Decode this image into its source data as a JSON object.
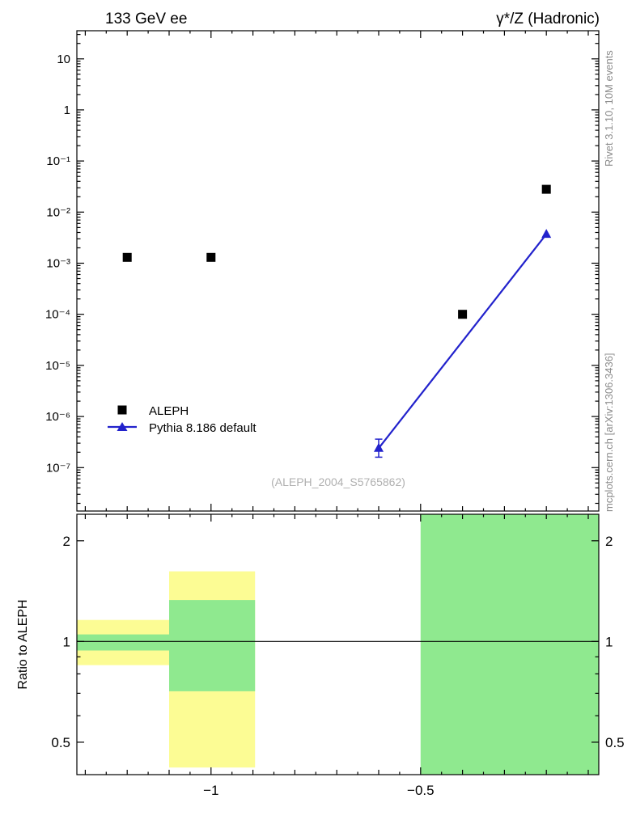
{
  "header": {
    "left_title": "133 GeV ee",
    "right_title": "γ*/Z (Hadronic)"
  },
  "side_notes": {
    "top_right": "Rivet 3.1.10,  10M events",
    "bottom_right": "mcplots.cern.ch [arXiv:1306.3436]"
  },
  "watermark": "(ALEPH_2004_S5765862)",
  "legend": [
    {
      "label": "ALEPH",
      "marker": "filled-square",
      "color": "#000000"
    },
    {
      "label": "Pythia 8.186 default",
      "marker": "filled-triangle-line",
      "color": "#2222cc"
    }
  ],
  "chart_data": {
    "type": "scatter",
    "title": "133 GeV ee — γ*/Z (Hadronic)",
    "analysis": "(ALEPH_2004_S5765862)",
    "x_axis": {
      "lim": [
        -1.32,
        -0.075
      ],
      "major_ticks": [
        {
          "value": -1,
          "label": "−1"
        },
        {
          "value": -0.5,
          "label": "−0.5"
        }
      ],
      "minor_step": 0.05
    },
    "main_panel": {
      "y_log": true,
      "y_lim_exp": [
        -7.85,
        1.55
      ],
      "y_ticks": [
        {
          "value": 10,
          "label": "10"
        },
        {
          "value": 1,
          "label": "1"
        },
        {
          "value": 0.1,
          "label": "10⁻¹"
        },
        {
          "value": 0.01,
          "label": "10⁻²"
        },
        {
          "value": 0.001,
          "label": "10⁻³"
        },
        {
          "value": 0.0001,
          "label": "10⁻⁴"
        },
        {
          "value": 1e-05,
          "label": "10⁻⁵"
        },
        {
          "value": 1e-06,
          "label": "10⁻⁶"
        },
        {
          "value": 1e-07,
          "label": "10⁻⁷"
        }
      ],
      "series": [
        {
          "name": "ALEPH",
          "role": "data",
          "marker": "square",
          "line": false,
          "color": "#000000",
          "points": [
            {
              "x": -1.2,
              "y": 0.0013
            },
            {
              "x": -1.0,
              "y": 0.0013
            },
            {
              "x": -0.4,
              "y": 0.0001
            },
            {
              "x": -0.2,
              "y": 0.028
            }
          ]
        },
        {
          "name": "Pythia 8.186 default",
          "role": "mc",
          "marker": "triangle",
          "line": true,
          "color": "#2222cc",
          "points": [
            {
              "x": -0.6,
              "y": 2.4e-07,
              "yerr_lo": 1.6e-07,
              "yerr_hi": 3.6e-07
            },
            {
              "x": -0.2,
              "y": 0.0037
            }
          ]
        }
      ]
    },
    "ratio_panel": {
      "ylabel": "Ratio to ALEPH",
      "y_log": true,
      "y_lim": [
        0.4,
        2.4
      ],
      "y_ticks": [
        {
          "value": 0.5,
          "label": "0.5"
        },
        {
          "value": 1,
          "label": "1"
        },
        {
          "value": 2,
          "label": "2"
        }
      ],
      "reference_line": 1,
      "band_colors": {
        "outer": "#fcfc94",
        "inner": "#8fe98f"
      },
      "bands": [
        {
          "x0": -1.32,
          "x1": -1.1,
          "outer": [
            0.85,
            1.16
          ],
          "inner": [
            0.94,
            1.05
          ]
        },
        {
          "x0": -1.1,
          "x1": -0.895,
          "outer": [
            0.42,
            1.62
          ],
          "inner": [
            0.71,
            1.33
          ]
        },
        {
          "x0": -0.5,
          "x1": -0.075,
          "outer": null,
          "inner": [
            0.4,
            2.4
          ]
        }
      ]
    }
  }
}
